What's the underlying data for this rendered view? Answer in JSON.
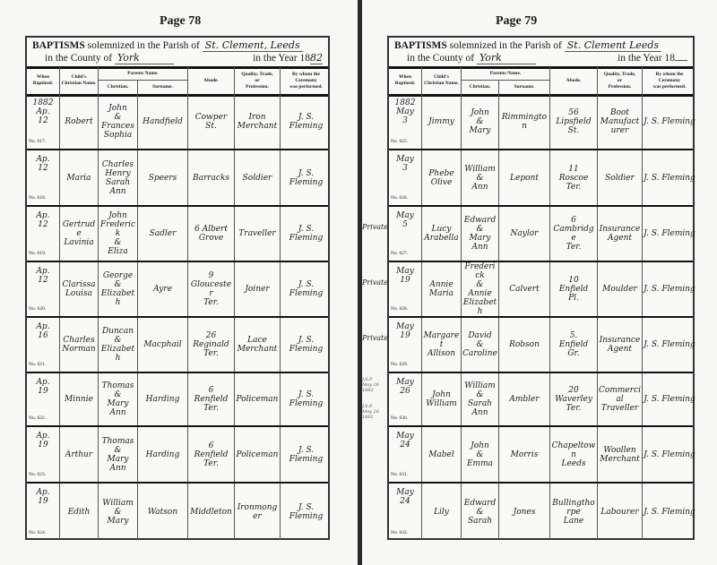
{
  "column_headers": {
    "when": "When\nBaptized.",
    "child": "Child's\nChristian Name.",
    "parents": "Parents Name.",
    "christian": "Christian.",
    "surname": "Surname.",
    "abode": "Abode.",
    "quality": "Quality, Trade,\nor\nProfession.",
    "by_whom": "By whom the\nCeremony\nwas performed."
  },
  "title_text": {
    "baptisms": "BAPTISMS",
    "solemnized": "solemnized in the Parish of",
    "county_label": "in the County of",
    "year_label": "in the Year 18"
  },
  "pages": [
    {
      "page_number": "Page 78",
      "parish": "St. Clement, Leeds",
      "county": "York",
      "year_suffix": "82",
      "entries": [
        {
          "no": "No. 617.",
          "when": "1882\nAp.\n12",
          "child": "Robert",
          "christian": "John\n&\nFrances\nSophia",
          "surname": "Handfield",
          "abode": "Cowper\nSt.",
          "quality": "Iron\nMerchant",
          "by": "J. S. Fleming"
        },
        {
          "no": "No. 618.",
          "when": "Ap.\n12",
          "child": "Maria",
          "christian": "Charles\nHenry\nSarah\nAnn",
          "surname": "Speers",
          "abode": "Barracks",
          "quality": "Soldier",
          "by": "J. S. Fleming"
        },
        {
          "no": "No. 619.",
          "when": "Ap.\n12",
          "child": "Gertrude\nLavinia",
          "christian": "John\nFrederick\n&\nEliza",
          "surname": "Sadler",
          "abode": "6 Albert\nGrove",
          "quality": "Traveller",
          "by": "J. S. Fleming"
        },
        {
          "no": "No. 620.",
          "when": "Ap.\n12",
          "child": "Clarissa\nLouisa",
          "christian": "George\n&\nElizabeth",
          "surname": "Ayre",
          "abode": "9\nGloucester\nTer.",
          "quality": "Joiner",
          "by": "J. S. Fleming"
        },
        {
          "no": "No. 621.",
          "when": "Ap.\n16",
          "child": "Charles\nNorman",
          "christian": "Duncan\n&\nElizabeth",
          "surname": "Macphail",
          "abode": "26\nReginald\nTer.",
          "quality": "Lace\nMerchant",
          "by": "J. S. Fleming"
        },
        {
          "no": "No. 622.",
          "when": "Ap.\n19",
          "child": "Minnie",
          "christian": "Thomas\n&\nMary\nAnn",
          "surname": "Harding",
          "abode": "6\nRenfield\nTer.",
          "quality": "Policeman",
          "by": "J. S. Fleming"
        },
        {
          "no": "No. 623.",
          "when": "Ap.\n19",
          "child": "Arthur",
          "christian": "Thomas\n&\nMary\nAnn",
          "surname": "Harding",
          "abode": "6\nRenfield\nTer.",
          "quality": "Policeman",
          "by": "J. S. Fleming"
        },
        {
          "no": "No. 624.",
          "when": "Ap.\n19",
          "child": "Edith",
          "christian": "William\n&\nMary",
          "surname": "Watson",
          "abode": "Middleton",
          "quality": "Ironmonger",
          "by": "J. S. Fleming"
        }
      ]
    },
    {
      "page_number": "Page 79",
      "parish": "St. Clement Leeds",
      "county": "York",
      "year_suffix": "",
      "entries": [
        {
          "no": "No. 625.",
          "when": "1882\nMay\n3",
          "child": "Jimmy",
          "christian": "John\n&\nMary",
          "surname": "Rimmington",
          "abode": "56\nLipsfield\nSt.",
          "quality": "Boot\nManufacturer",
          "by": "J. S. Fleming"
        },
        {
          "no": "No. 626.",
          "when": "May\n3",
          "child": "Phebe\nOlive",
          "christian": "William\n&\nAnn",
          "surname": "Lepont",
          "abode": "11\nRoscoe\nTer.",
          "quality": "Soldier",
          "by": "J. S. Fleming"
        },
        {
          "no": "No. 627.",
          "when": "May\n5",
          "child": "Lucy\nArabella",
          "christian": "Edward\n&\nMary\nAnn",
          "surname": "Naylor",
          "abode": "6\nCambridge\nTer.",
          "quality": "Insurance\nAgent",
          "by": "J. S. Fleming"
        },
        {
          "no": "No. 628.",
          "when": "May\n19",
          "child": "Annie\nMaria",
          "christian": "Frederick\n&\nAnnie\nElizabeth",
          "surname": "Calvert",
          "abode": "10\nEnfield\nPl.",
          "quality": "Moulder",
          "by": "J. S. Fleming"
        },
        {
          "no": "No. 629.",
          "when": "May\n19",
          "child": "Margaret\nAllison",
          "christian": "David\n&\nCaroline",
          "surname": "Robson",
          "abode": "5.\nEnfield\nGr.",
          "quality": "Insurance\nAgent",
          "by": "J. S. Fleming"
        },
        {
          "no": "No. 630.",
          "when": "May\n26",
          "child": "John\nWilliam",
          "christian": "William\n&\nSarah\nAnn",
          "surname": "Ambler",
          "abode": "20\nWaverley\nTer.",
          "quality": "Commercial\nTraveller",
          "by": "J. S. Fleming"
        },
        {
          "no": "No. 631.",
          "when": "May\n24",
          "child": "Mabel",
          "christian": "John\n&\nEmma",
          "surname": "Morris",
          "abode": "Chapeltown\nLeeds",
          "quality": "Woollen\nMerchant",
          "by": "J. S. Fleming"
        },
        {
          "no": "No. 632.",
          "when": "May\n24",
          "child": "Lily",
          "christian": "Edward\n&\nSarah",
          "surname": "Jones",
          "abode": "Bullingthorpe\nLane",
          "quality": "Labourer",
          "by": "J. S. Fleming"
        }
      ]
    }
  ],
  "margin_notes": [
    {
      "row": 2,
      "text": "Private"
    },
    {
      "row": 3,
      "text": "Private"
    },
    {
      "row": 4,
      "text": "Private"
    },
    {
      "row": 5,
      "text": "J.S.F.\nMay 26 1882",
      "small": true
    },
    {
      "row": 5,
      "text": "J.S.F.\nMay 26 1882",
      "small": true,
      "second": true
    }
  ]
}
